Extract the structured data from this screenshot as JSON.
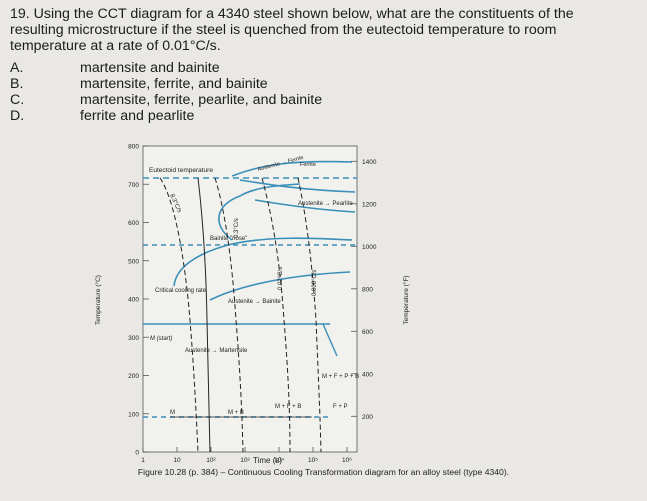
{
  "question": {
    "lines": [
      "19. Using the CCT diagram for a 4340 steel shown below, what are the constituents of the",
      "resulting microstructure if the steel is quenched from the eutectoid temperature to room",
      "temperature at a rate of 0.01°C/s."
    ]
  },
  "options": [
    {
      "letter": "A.",
      "text": "martensite and bainite"
    },
    {
      "letter": "B.",
      "text": "martensite, ferrite, and bainite"
    },
    {
      "letter": "C.",
      "text": "martensite, ferrite, pearlite, and bainite"
    },
    {
      "letter": "D.",
      "text": "ferrite and pearlite"
    }
  ],
  "chart_data": {
    "type": "line",
    "xlabel": "Time (s)",
    "ylabel_left": "Temperature (°C)",
    "ylabel_right": "Temperature (°F)",
    "x_scale": "log",
    "x_ticks": [
      "1",
      "10",
      "10²",
      "10³",
      "10⁴",
      "10⁵",
      "10⁶"
    ],
    "y_ticks_left": [
      0,
      100,
      200,
      300,
      400,
      500,
      600,
      700,
      800
    ],
    "y_ticks_right": [
      200,
      400,
      600,
      800,
      1000,
      1200,
      1400
    ],
    "ylim": [
      0,
      800
    ],
    "cooling_rates": [
      "8.3°C/s",
      "0.3°C/s",
      "0.02°C/s",
      "0.006°C/s"
    ],
    "annotations": {
      "eutectoid": "Eutectoid temperature",
      "austenite_ferrite": "Austenite → Ferrite",
      "austenite_pearlite": "Austenite → Pearlite",
      "bainite_nose": "Bainite \"nose\"",
      "critical_rate": "Critical cooling rate",
      "austenite_bainite": "Austenite → Bainite",
      "m_start": "M (start)",
      "austenite_martensite": "Austenite → Martensite",
      "m_f_p_b": "M + F + P + B",
      "m_b": "M + B",
      "m_f_b": "M + F + B",
      "f_p": "F + P",
      "m": "M"
    }
  },
  "caption": "Figure 10.28 (p. 384) – Continuous Cooling Transformation diagram for an alloy steel (type 4340)."
}
